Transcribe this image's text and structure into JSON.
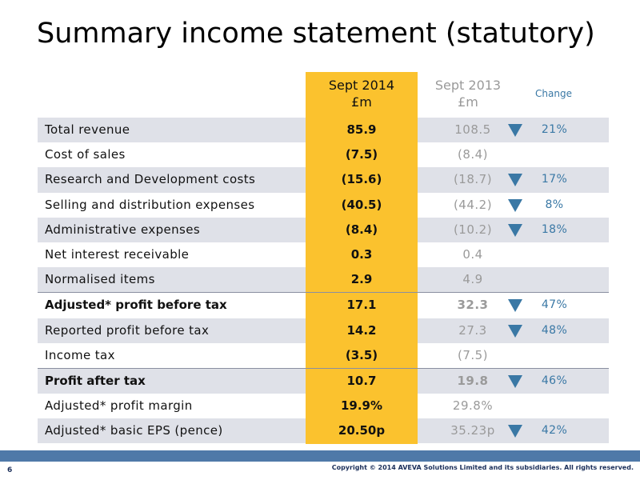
{
  "title": "Summary income statement (statutory)",
  "headers": {
    "current_line1": "Sept 2014",
    "current_line2": "£m",
    "previous_line1": "Sept 2013",
    "previous_line2": "£m",
    "change": "Change"
  },
  "rows": [
    {
      "label": "Total revenue",
      "current": "85.9",
      "previous": "108.5",
      "change": "21%",
      "arrow": "down-arrow-icon"
    },
    {
      "label": "Cost of sales",
      "current": "(7.5)",
      "previous": "(8.4)",
      "change": "",
      "arrow": ""
    },
    {
      "label": "Research and Development costs",
      "current": "(15.6)",
      "previous": "(18.7)",
      "change": "17%",
      "arrow": "down-arrow-icon"
    },
    {
      "label": "Selling and distribution expenses",
      "current": "(40.5)",
      "previous": "(44.2)",
      "change": "8%",
      "arrow": "down-arrow-icon"
    },
    {
      "label": "Administrative expenses",
      "current": "(8.4)",
      "previous": "(10.2)",
      "change": "18%",
      "arrow": "down-arrow-icon"
    },
    {
      "label": "Net interest receivable",
      "current": "0.3",
      "previous": "0.4",
      "change": "",
      "arrow": ""
    },
    {
      "label": "Normalised items",
      "current": "2.9",
      "previous": "4.9",
      "change": "",
      "arrow": ""
    },
    {
      "label": "Adjusted* profit before tax",
      "current": "17.1",
      "previous": "32.3",
      "change": "47%",
      "arrow": "down-arrow-icon"
    },
    {
      "label": "Reported profit before tax",
      "current": "14.2",
      "previous": "27.3",
      "change": "48%",
      "arrow": "down-arrow-icon"
    },
    {
      "label": "Income tax",
      "current": "(3.5)",
      "previous": "(7.5)",
      "change": "",
      "arrow": ""
    },
    {
      "label": "Profit after tax",
      "current": "10.7",
      "previous": "19.8",
      "change": "46%",
      "arrow": "down-arrow-icon"
    },
    {
      "label": "Adjusted* profit margin",
      "current": "19.9%",
      "previous": "29.8%",
      "change": "",
      "arrow": ""
    },
    {
      "label": "Adjusted* basic EPS (pence)",
      "current": "20.50p",
      "previous": "35.23p",
      "change": "42%",
      "arrow": "down-arrow-icon"
    }
  ],
  "footer": {
    "page_number": "6",
    "copyright": "Copyright © 2014 AVEVA Solutions Limited and its subsidiaries. All rights reserved."
  },
  "colors": {
    "highlight": "#fbc22e",
    "row_shade": "#dfe1e8",
    "change_text": "#3a78a5",
    "arrow": "#3a78a5",
    "footer_bar": "#4f79a8"
  }
}
